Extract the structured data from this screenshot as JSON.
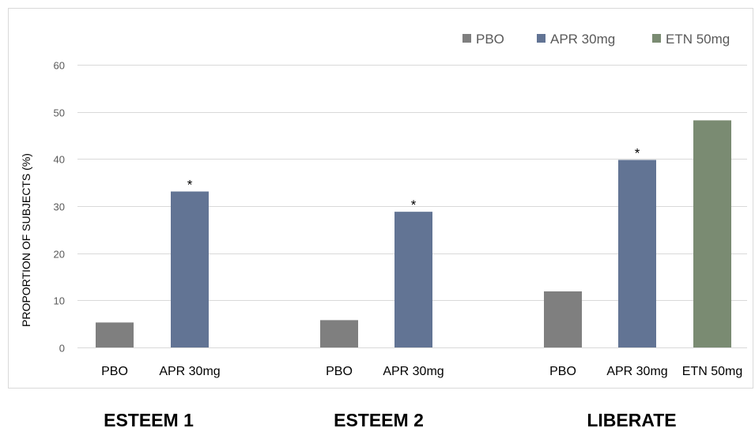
{
  "chart_data": {
    "type": "bar",
    "ylabel": "PROPORTION OF SUBJECTS (%)",
    "ylim": [
      0,
      60
    ],
    "yticks": [
      0,
      10,
      20,
      30,
      40,
      50,
      60
    ],
    "grid": true,
    "legend_position": "top-right",
    "legend": [
      {
        "name": "PBO",
        "color": "#7f7f7f"
      },
      {
        "name": "APR 30mg",
        "color": "#627494"
      },
      {
        "name": "ETN 50mg",
        "color": "#7a8b72"
      }
    ],
    "groups": [
      {
        "name": "ESTEEM 1",
        "bars": [
          {
            "label": "PBO",
            "series": "PBO",
            "value": 5.3,
            "significant": false
          },
          {
            "label": "APR 30mg",
            "series": "APR 30mg",
            "value": 33.1,
            "significant": true
          }
        ]
      },
      {
        "name": "ESTEEM 2",
        "bars": [
          {
            "label": "PBO",
            "series": "PBO",
            "value": 5.8,
            "significant": false
          },
          {
            "label": "APR 30mg",
            "series": "APR 30mg",
            "value": 28.8,
            "significant": true
          }
        ]
      },
      {
        "name": "LIBERATE",
        "bars": [
          {
            "label": "PBO",
            "series": "PBO",
            "value": 11.9,
            "significant": false
          },
          {
            "label": "APR 30mg",
            "series": "APR 30mg",
            "value": 39.8,
            "significant": true
          },
          {
            "label": "ETN 50mg",
            "series": "ETN 50mg",
            "value": 48.2,
            "significant": false
          }
        ]
      }
    ],
    "significance_marker": "*"
  }
}
